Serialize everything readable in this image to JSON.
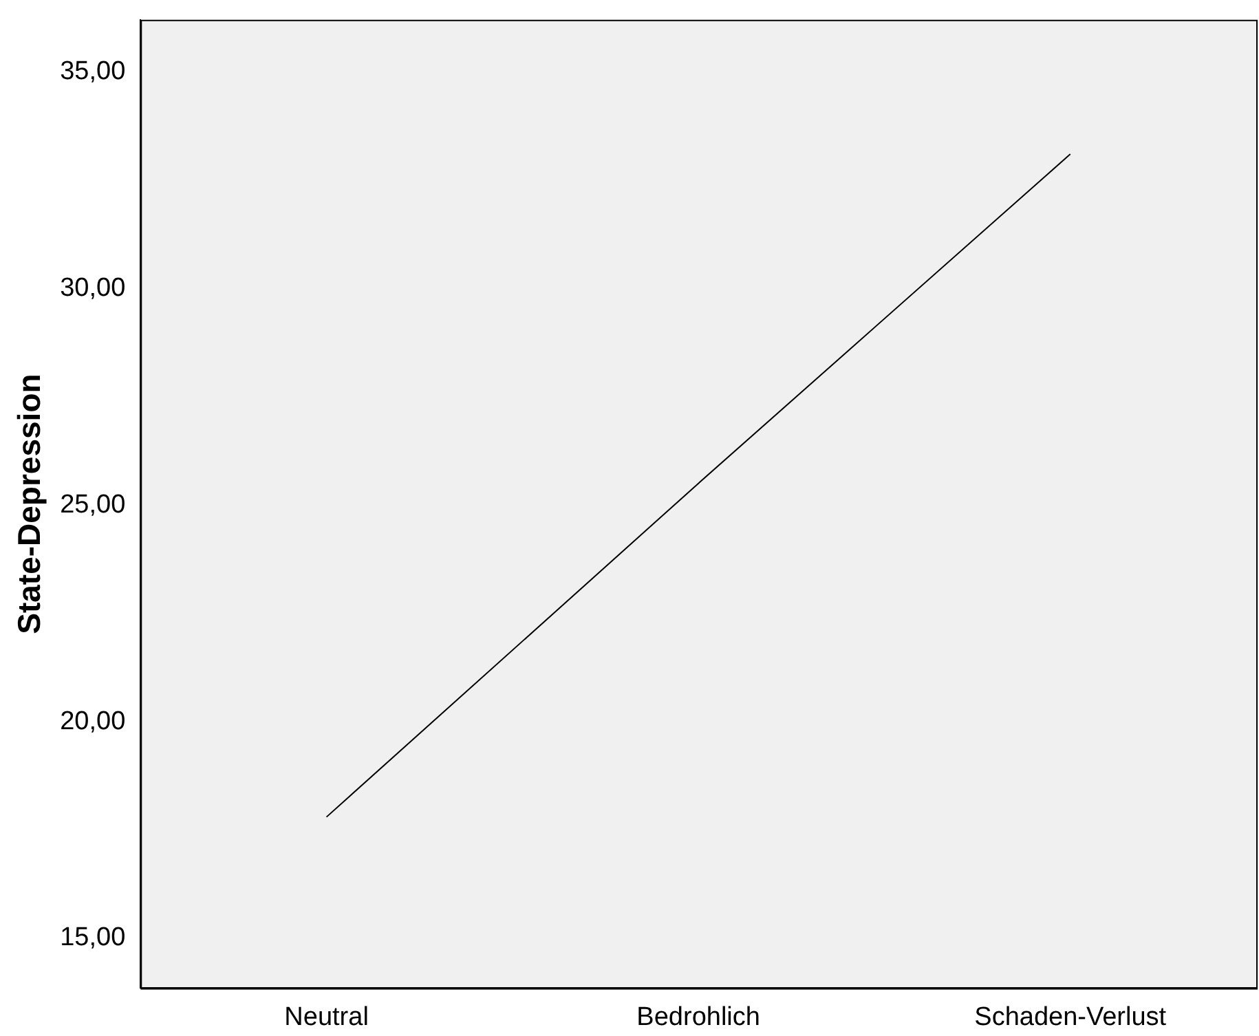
{
  "chart_data": {
    "type": "line",
    "ylabel": "State-Depression",
    "categories": [
      "Neutral",
      "Bedrohlich",
      "Schaden-Verlust"
    ],
    "series": [
      {
        "color": "#000000",
        "values": [
          17.8,
          25.5,
          33.1
        ]
      }
    ],
    "ylim": [
      13.85,
      36.2
    ],
    "yticks": [
      {
        "value": 15,
        "label": "15,00"
      },
      {
        "value": 20,
        "label": "20,00"
      },
      {
        "value": 25,
        "label": "25,00"
      },
      {
        "value": 30,
        "label": "30,00"
      },
      {
        "value": 35,
        "label": "35,00"
      }
    ],
    "grid": false,
    "legend": false,
    "marker": "none",
    "line_style": "solid"
  }
}
